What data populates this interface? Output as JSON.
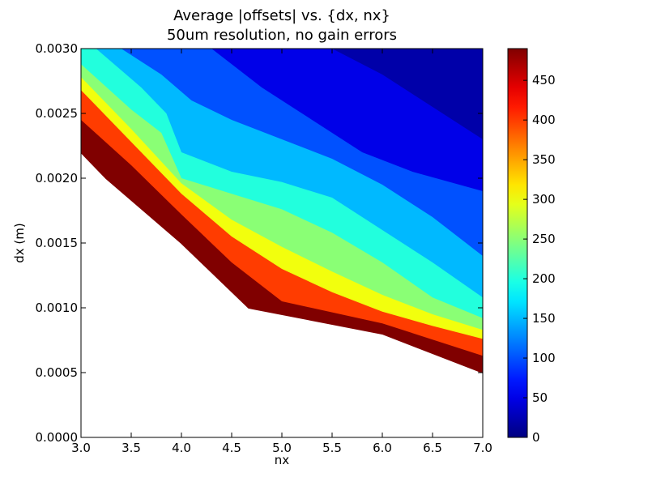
{
  "chart_data": {
    "type": "contour",
    "title": "Average |offsets| vs. {dx, nx}",
    "subtitle": "50um resolution, no gain errors",
    "xlabel": "nx",
    "ylabel": "dx (m)",
    "xlim": [
      3.0,
      7.0
    ],
    "ylim": [
      0.0,
      0.003
    ],
    "x_ticks": [
      "3.0",
      "3.5",
      "4.0",
      "4.5",
      "5.0",
      "5.5",
      "6.0",
      "6.5",
      "7.0"
    ],
    "y_ticks": [
      "0.0000",
      "0.0005",
      "0.0010",
      "0.0015",
      "0.0020",
      "0.0025",
      "0.0030"
    ],
    "colorbar": {
      "colormap": "jet",
      "range": [
        0,
        490
      ],
      "ticks": [
        "0",
        "50",
        "100",
        "150",
        "200",
        "250",
        "300",
        "350",
        "400",
        "450"
      ]
    },
    "grid": false,
    "lower_boundary": [
      {
        "x": 3.0,
        "y": 0.0022
      },
      {
        "x": 3.25,
        "y": 0.002
      },
      {
        "x": 4.0,
        "y": 0.0015
      },
      {
        "x": 4.67,
        "y": 0.001
      },
      {
        "x": 6.0,
        "y": 0.0008
      },
      {
        "x": 7.0,
        "y": 0.0005
      }
    ],
    "contour_levels": [
      {
        "value": 400,
        "points": [
          [
            3.0,
            0.00245
          ],
          [
            3.5,
            0.0021
          ],
          [
            4.0,
            0.00172
          ],
          [
            4.5,
            0.00135
          ],
          [
            5.0,
            0.00105
          ],
          [
            6.0,
            0.00088
          ],
          [
            7.0,
            0.00063
          ]
        ]
      },
      {
        "value": 300,
        "points": [
          [
            3.0,
            0.00268
          ],
          [
            3.5,
            0.00228
          ],
          [
            4.0,
            0.00188
          ],
          [
            4.5,
            0.00155
          ],
          [
            5.0,
            0.0013
          ],
          [
            5.5,
            0.00112
          ],
          [
            6.0,
            0.00097
          ],
          [
            6.5,
            0.00086
          ],
          [
            7.0,
            0.00076
          ]
        ]
      },
      {
        "value": 250,
        "points": [
          [
            3.0,
            0.00278
          ],
          [
            3.5,
            0.00238
          ],
          [
            4.0,
            0.00196
          ],
          [
            4.5,
            0.00168
          ],
          [
            5.0,
            0.00147
          ],
          [
            5.5,
            0.00128
          ],
          [
            6.0,
            0.0011
          ],
          [
            6.5,
            0.00095
          ],
          [
            7.0,
            0.00083
          ]
        ]
      },
      {
        "value": 200,
        "points": [
          [
            3.0,
            0.00288
          ],
          [
            3.5,
            0.00253
          ],
          [
            3.8,
            0.00235
          ],
          [
            4.0,
            0.002
          ],
          [
            4.5,
            0.00188
          ],
          [
            5.0,
            0.00176
          ],
          [
            5.5,
            0.00158
          ],
          [
            6.0,
            0.00135
          ],
          [
            6.5,
            0.00108
          ],
          [
            7.0,
            0.00092
          ]
        ]
      },
      {
        "value": 150,
        "points": [
          [
            3.15,
            0.003
          ],
          [
            3.6,
            0.0027
          ],
          [
            3.85,
            0.0025
          ],
          [
            4.0,
            0.0022
          ],
          [
            4.5,
            0.00205
          ],
          [
            5.0,
            0.00197
          ],
          [
            5.5,
            0.00185
          ],
          [
            6.0,
            0.0016
          ],
          [
            6.5,
            0.00135
          ],
          [
            7.0,
            0.00108
          ]
        ]
      },
      {
        "value": 100,
        "points": [
          [
            3.4,
            0.003
          ],
          [
            3.8,
            0.0028
          ],
          [
            4.1,
            0.0026
          ],
          [
            4.5,
            0.00245
          ],
          [
            5.0,
            0.0023
          ],
          [
            5.5,
            0.00215
          ],
          [
            6.0,
            0.00195
          ],
          [
            6.5,
            0.0017
          ],
          [
            7.0,
            0.0014
          ]
        ]
      },
      {
        "value": 50,
        "points": [
          [
            4.3,
            0.003
          ],
          [
            4.8,
            0.0027
          ],
          [
            5.3,
            0.00245
          ],
          [
            5.8,
            0.0022
          ],
          [
            6.3,
            0.00205
          ],
          [
            7.0,
            0.0019
          ]
        ]
      },
      {
        "value": 20,
        "points": [
          [
            5.5,
            0.003
          ],
          [
            6.0,
            0.0028
          ],
          [
            6.5,
            0.00255
          ],
          [
            7.0,
            0.0023
          ]
        ]
      }
    ]
  }
}
